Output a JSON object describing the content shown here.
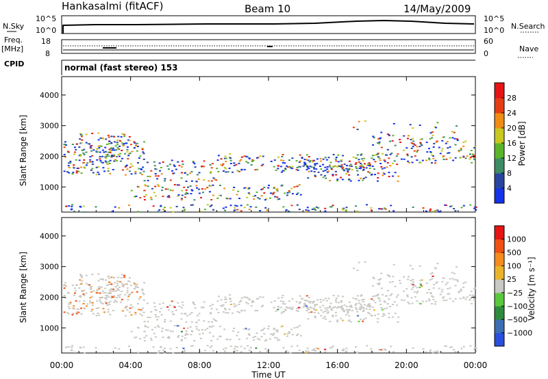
{
  "header": {
    "station": "Hankasalmi (fitACF)",
    "beam": "Beam 10",
    "date": "14/May/2009"
  },
  "top_panels": {
    "nsky_label": "N.Sky",
    "nsky_ticks": [
      "10^5",
      "10^0"
    ],
    "nsearch_label": "N.Search",
    "nsearch_ticks": [
      "10^5",
      "10^0"
    ],
    "freq_label": "Freq.",
    "freq_unit": "[MHz]",
    "freq_ticks": [
      "18",
      "8"
    ],
    "nave_label": "Nave",
    "nave_ticks": [
      "60",
      "0"
    ],
    "cpid_label": "CPID",
    "cpid_text": "normal (fast stereo) 153"
  },
  "chart_data": [
    {
      "type": "heatmap",
      "name": "power",
      "ylabel": "Slant Range [km]",
      "xlabel": "",
      "y_ticks": [
        "1000",
        "2000",
        "3000",
        "4000"
      ],
      "ylim": [
        180,
        4600
      ],
      "xlim": [
        0,
        24
      ],
      "colorbar": {
        "label": "Power [dB]",
        "ticks": [
          "4",
          "8",
          "12",
          "16",
          "20",
          "24",
          "28"
        ],
        "colors": [
          "#1432e8",
          "#2846a0",
          "#3c8c64",
          "#5ab428",
          "#c8c81e",
          "#f08c14",
          "#e63c14",
          "#e61414"
        ]
      }
    },
    {
      "type": "heatmap",
      "name": "velocity",
      "ylabel": "Slant Range [km]",
      "xlabel": "Time UT",
      "x_ticks": [
        "00:00",
        "04:00",
        "08:00",
        "12:00",
        "16:00",
        "20:00",
        "00:00"
      ],
      "y_ticks": [
        "1000",
        "2000",
        "3000",
        "4000"
      ],
      "ylim": [
        180,
        4600
      ],
      "xlim": [
        0,
        24
      ],
      "colorbar": {
        "label": "Velocity [m s⁻¹]",
        "ticks": [
          "1000",
          "500",
          "100",
          "25",
          "−25",
          "−100",
          "−500",
          "−1000"
        ],
        "colors": [
          "#2850dc",
          "#3c6eb4",
          "#2d8c3c",
          "#5ac83c",
          "#c8c8c4",
          "#ebb428",
          "#f58c1e",
          "#f05014",
          "#e61414"
        ]
      },
      "ground_scatter_color": "#c8c8c4"
    }
  ]
}
